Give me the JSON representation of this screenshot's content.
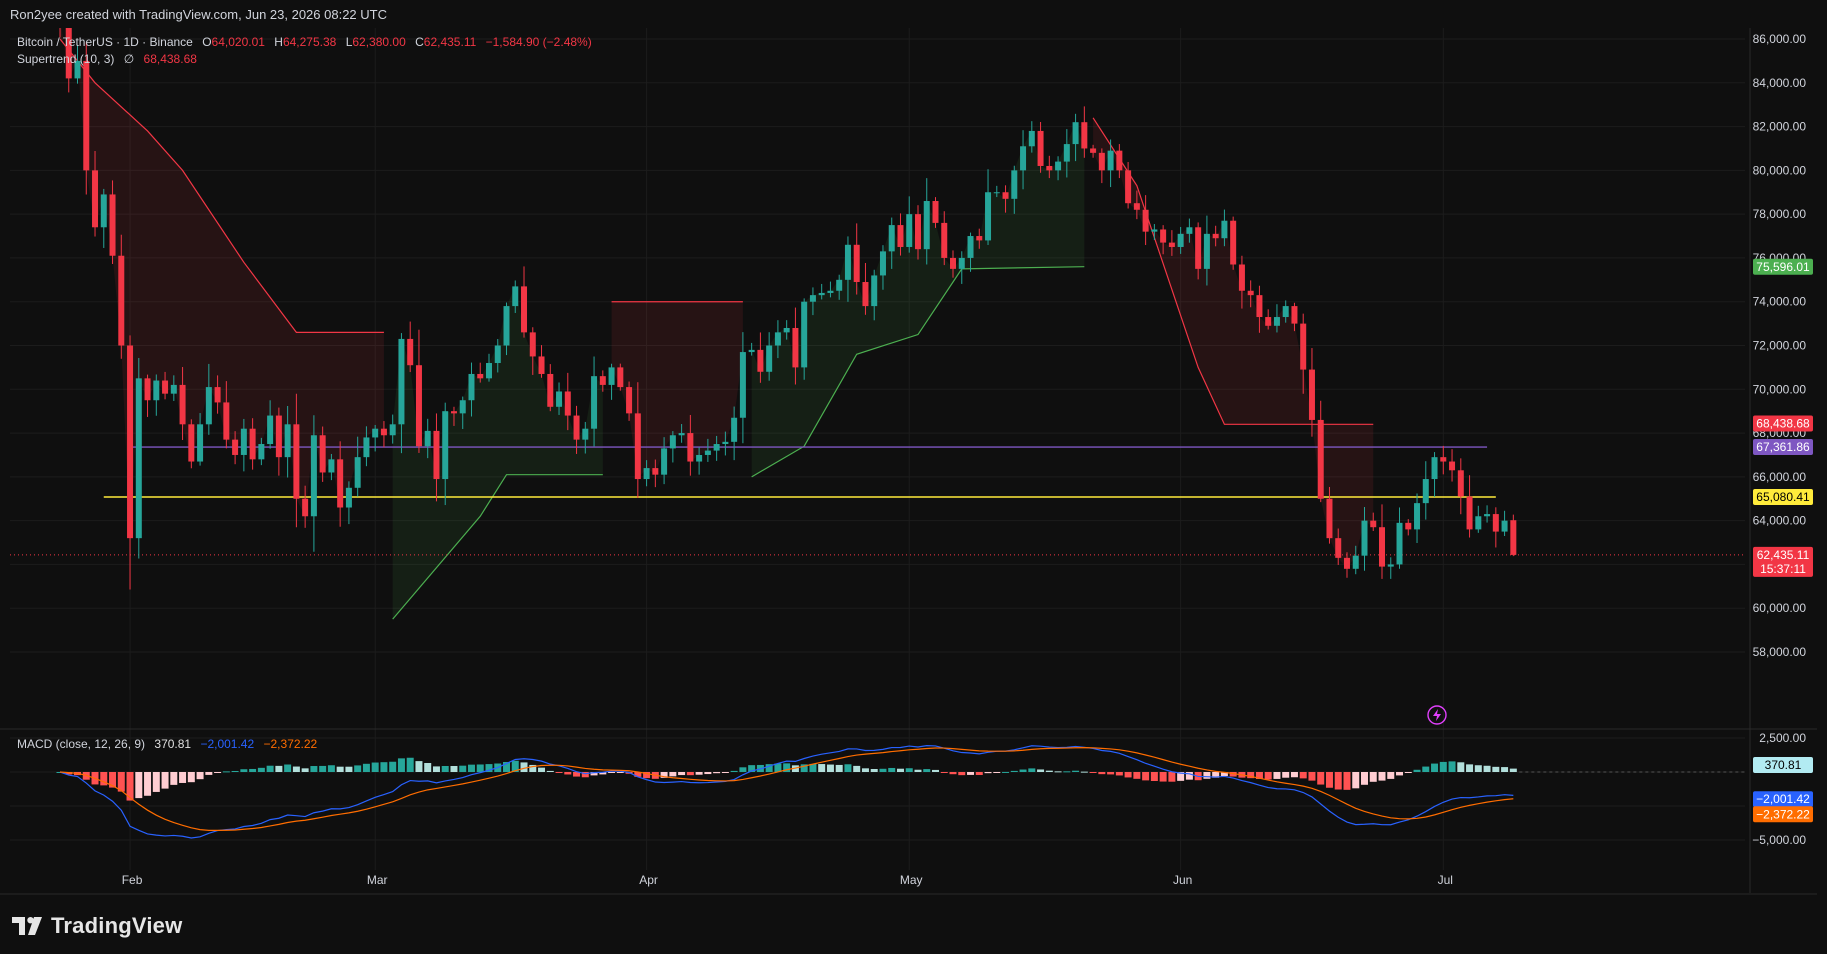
{
  "credit": "Ron2yee created with TradingView.com, Jun 23, 2026 08:22 UTC",
  "brand": {
    "name": "TradingView",
    "icon": "tradingview-logo-icon"
  },
  "colors": {
    "up": "#26a69a",
    "down": "#f23645",
    "st_up": "#4caf50",
    "st_down": "#f23645",
    "purple": "#7e57c2",
    "yellow": "#ffeb3b",
    "macd": "#2962ff",
    "signal": "#ff6d00",
    "hist_up_strong": "#26a69a",
    "hist_up_weak": "#b2dfdb",
    "hist_down_strong": "#ff5252",
    "hist_down_weak": "#ffcdd2"
  },
  "legend": {
    "symbol": "Bitcoin / TetherUS · 1D · Binance",
    "o_label": "O",
    "o": "64,020.01",
    "h_label": "H",
    "h": "64,275.38",
    "l_label": "L",
    "l": "62,380.00",
    "c_label": "C",
    "c": "62,435.11",
    "chg": "−1,584.90 (−2.48%)",
    "supertrend_label": "Supertrend (10, 3)",
    "supertrend_flag": "∅",
    "supertrend_value": "68,438.68",
    "macd_label": "MACD (close, 12, 26, 9)",
    "macd_hist": "370.81",
    "macd_line": "−2,001.42",
    "macd_signal": "−2,372.22"
  },
  "chart_data": {
    "type": "candlestick",
    "interval": "1D",
    "symbol": "Bitcoin / TetherUS",
    "exchange": "Binance",
    "x_start": "2026-01-24",
    "price_axis": {
      "min": 57000,
      "max": 86500,
      "ticks": [
        58000,
        60000,
        62000,
        64000,
        66000,
        68000,
        70000,
        72000,
        74000,
        76000,
        78000,
        80000,
        82000,
        84000,
        86000
      ]
    },
    "x_labels": [
      {
        "label": "Feb",
        "date": "2026-02-01"
      },
      {
        "label": "Mar",
        "date": "2026-03-01"
      },
      {
        "label": "Apr",
        "date": "2026-04-01"
      },
      {
        "label": "May",
        "date": "2026-05-01"
      },
      {
        "label": "Jun",
        "date": "2026-06-01"
      },
      {
        "label": "Jul",
        "date": "2026-07-01"
      }
    ],
    "closes": [
      87000,
      84200,
      85000,
      80000,
      77400,
      78900,
      76100,
      72000,
      63200,
      70500,
      69500,
      70400,
      69800,
      70200,
      68400,
      66700,
      68400,
      70100,
      69400,
      67700,
      67000,
      68200,
      66800,
      67500,
      68800,
      66900,
      68400,
      65000,
      64200,
      67900,
      66200,
      66800,
      64600,
      65500,
      66900,
      67800,
      68200,
      67900,
      68400,
      72300,
      71100,
      67400,
      68100,
      65900,
      69000,
      68900,
      69500,
      70700,
      70500,
      71200,
      72000,
      73800,
      74700,
      72600,
      71500,
      70700,
      69200,
      69900,
      68800,
      67700,
      68200,
      70600,
      70200,
      71000,
      70100,
      68900,
      65900,
      66400,
      66100,
      67300,
      67900,
      68000,
      66700,
      67000,
      67200,
      67500,
      67600,
      68700,
      71700,
      71800,
      70800,
      72000,
      72600,
      72800,
      71000,
      74000,
      74300,
      74400,
      74500,
      75000,
      76600,
      74900,
      73800,
      75200,
      76300,
      77500,
      76500,
      78000,
      76400,
      78600,
      77600,
      76000,
      75500,
      76000,
      77000,
      76800,
      79000,
      79000,
      78700,
      80000,
      81100,
      81800,
      80200,
      80000,
      80400,
      81200,
      82200,
      81000,
      80800,
      80000,
      80900,
      80000,
      78500,
      78200,
      77200,
      77300,
      76700,
      76500,
      77100,
      77400,
      75500,
      77100,
      76900,
      77700,
      75700,
      74500,
      74300,
      73300,
      72900,
      73300,
      73800,
      73000,
      70900,
      68600,
      65000,
      63200,
      62300,
      61800,
      62400,
      64000,
      63700,
      61900,
      62000,
      63900,
      63600,
      64800,
      65900,
      66900,
      66700,
      66300,
      65100,
      63600,
      64200,
      64300,
      63500,
      64000,
      62435
    ],
    "supertrend": [
      {
        "date": "2026-01-24",
        "value": 86000,
        "trend": "down"
      },
      {
        "date": "2026-01-28",
        "value": 84000,
        "trend": "down"
      },
      {
        "date": "2026-02-03",
        "value": 81800,
        "trend": "down"
      },
      {
        "date": "2026-02-07",
        "value": 80000,
        "trend": "down"
      },
      {
        "date": "2026-02-14",
        "value": 75800,
        "trend": "down"
      },
      {
        "date": "2026-02-20",
        "value": 72600,
        "trend": "down"
      },
      {
        "date": "2026-03-02",
        "value": 72600,
        "trend": "down"
      },
      {
        "date": "2026-03-03",
        "value": 59500,
        "trend": "up"
      },
      {
        "date": "2026-03-13",
        "value": 64200,
        "trend": "up"
      },
      {
        "date": "2026-03-16",
        "value": 66100,
        "trend": "up"
      },
      {
        "date": "2026-03-27",
        "value": 66100,
        "trend": "up"
      },
      {
        "date": "2026-03-28",
        "value": 74000,
        "trend": "down"
      },
      {
        "date": "2026-04-12",
        "value": 74000,
        "trend": "down"
      },
      {
        "date": "2026-04-13",
        "value": 66000,
        "trend": "up"
      },
      {
        "date": "2026-04-19",
        "value": 67400,
        "trend": "up"
      },
      {
        "date": "2026-04-25",
        "value": 71600,
        "trend": "up"
      },
      {
        "date": "2026-05-02",
        "value": 72500,
        "trend": "up"
      },
      {
        "date": "2026-05-07",
        "value": 75500,
        "trend": "up"
      },
      {
        "date": "2026-05-21",
        "value": 75600,
        "trend": "up"
      },
      {
        "date": "2026-05-22",
        "value": 82400,
        "trend": "down"
      },
      {
        "date": "2026-05-27",
        "value": 79300,
        "trend": "down"
      },
      {
        "date": "2026-06-03",
        "value": 71000,
        "trend": "down"
      },
      {
        "date": "2026-06-06",
        "value": 68400,
        "trend": "down"
      },
      {
        "date": "2026-06-23",
        "value": 68400,
        "trend": "down"
      }
    ],
    "horizontal_lines": [
      {
        "price": 67361.86,
        "color": "#7e57c2",
        "from": "2026-02-01",
        "to": "2026-07-06"
      },
      {
        "price": 65080.41,
        "color": "#ffeb3b",
        "from": "2026-01-29",
        "to": "2026-07-07"
      }
    ],
    "last_price_line": 62435.11,
    "price_tags": [
      {
        "value": "75,596.01",
        "price": 75596.01,
        "color": "#4caf50"
      },
      {
        "value": "68,438.68",
        "price": 68438.68,
        "color": "#f23645"
      },
      {
        "value": "67,361.86",
        "price": 67361.86,
        "color": "#7e57c2"
      },
      {
        "value": "65,080.41",
        "price": 65080.41,
        "color": "#ffeb3b"
      },
      {
        "value": "62,435.11",
        "price": 62435.11,
        "color": "#f23645",
        "countdown": "15:37:11"
      }
    ],
    "macd": {
      "axis": {
        "min": -6500,
        "max": 3200,
        "ticks": [
          2500,
          0,
          -2500,
          -5000
        ],
        "tick_labels": [
          "2,500.00",
          "0",
          "−2,500.00",
          "−5,000.00"
        ],
        "hidden_tick_labels": [
          0,
          -2500
        ]
      },
      "hist_tag": {
        "value": "370.81",
        "price": 370.81,
        "color": "#b2ebf2"
      },
      "macd_tag": {
        "value": "−2,001.42",
        "price": -2001.42,
        "color": "#2962ff"
      },
      "signal_tag": {
        "value": "−2,372.22",
        "price": -2372.22,
        "color": "#ff6d00"
      }
    }
  }
}
